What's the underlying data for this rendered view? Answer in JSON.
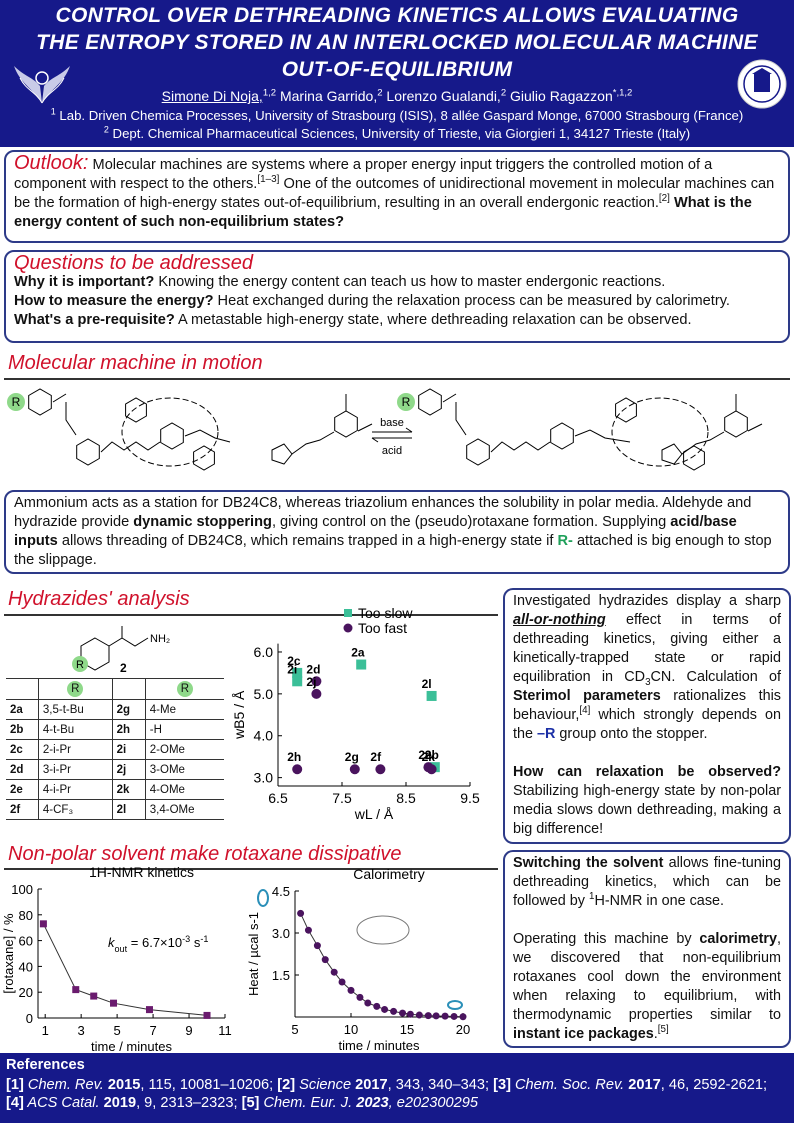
{
  "header": {
    "title": [
      "CONTROL OVER DETHREADING KINETICS ALLOWS EVALUATING",
      "THE ENTROPY STORED IN AN INTERLOCKED MOLECULAR MACHINE",
      "OUT-OF-EQUILIBRIUM"
    ],
    "authors": [
      "Simone Di Noja,",
      "1,2",
      " Marina Garrido,",
      "2",
      " Lorenzo Gualandi,",
      "2",
      " Giulio Ragazzon",
      "*,1,2"
    ],
    "affiliations": [
      [
        "1",
        " Lab. Driven Chemica Processes, University of Strasbourg (ISIS), 8 allée Gaspard Monge, 67000 Strasbourg (France)"
      ],
      [
        "2",
        " Dept. Chemical Pharmaceutical Sciences, University of Trieste, via Giorgieri 1, 34127 Trieste (Italy)"
      ]
    ]
  },
  "outlook": {
    "text": [
      "Outlook:",
      " Molecular machines are systems where a proper energy input triggers the controlled motion of a component with respect to the others.",
      "[1–3]",
      " One of the outcomes of unidirectional movement in molecular machines can be the formation of high-energy states out-of-equilibrium, resulting in an overall endergonic reaction.",
      "[2]",
      " What is the energy content of such non-equilibrium states?"
    ]
  },
  "questions": {
    "title": "Questions to be addressed",
    "lines": [
      [
        "Why it is important?",
        " Knowing the energy content can teach us how to master endergonic reactions."
      ],
      [
        "How to measure the energy?",
        " Heat exchanged during the relaxation process can be measured by calorimetry."
      ],
      [
        "What's a pre-requisite?",
        " A metastable high-energy state, where dethreading relaxation can be observed."
      ]
    ]
  },
  "machine": {
    "title": "Molecular machine in motion",
    "scheme": {
      "r_left": "R",
      "r_right": "R",
      "forward": "base",
      "backward": "acid"
    },
    "description": [
      "Ammonium acts as a station for DB24C8, whereas triazolium enhances the solubility in polar media. Aldehyde and hydrazide provide ",
      "dynamic stoppering",
      ", giving control on the (pseudo)rotaxane formation. Supplying ",
      "acid/base inputs",
      " allows threading of DB24C8, which remains trapped in a high-energy state if ",
      "R-",
      " attached is big enough to stop the slippage."
    ]
  },
  "hydrazides": {
    "title": "Hydrazides' analysis",
    "structure": {
      "r": "R",
      "amine": "NH₂",
      "compound": "2"
    },
    "table": {
      "header": [
        "R",
        "R"
      ],
      "rows": [
        [
          "2a",
          "3,5-t-Bu",
          "2g",
          "4-Me"
        ],
        [
          "2b",
          "4-t-Bu",
          "2h",
          "-H"
        ],
        [
          "2c",
          "2-i-Pr",
          "2i",
          "2-OMe"
        ],
        [
          "2d",
          "3-i-Pr",
          "2j",
          "3-OMe"
        ],
        [
          "2e",
          "4-i-Pr",
          "2k",
          "4-OMe"
        ],
        [
          "2f",
          "4-CF₃",
          "2l",
          "3,4-OMe"
        ]
      ]
    },
    "summary": [
      "Investigated hydrazides display a sharp ",
      "all-or-nothing",
      " effect in terms of dethreading kinetics, giving either a kinetically-trapped state or rapid equilibration in CD",
      "3",
      "CN. Calculation of ",
      "Sterimol parameters",
      " rationalizes this behaviour,",
      "[4]",
      " which strongly depends on the ",
      "–R",
      " group onto the stopper."
    ],
    "question": [
      "How can relaxation be observed?",
      " Stabilizing high-energy state by non-polar media slows down dethreading, making a big difference!"
    ]
  },
  "dissipative": {
    "title": "Non-polar solvent make rotaxane dissipative",
    "text1": [
      "Switching the solvent",
      " allows fine-tuning dethreading kinetics, which can be followed by ",
      "1",
      "H-NMR in one case."
    ],
    "text2": [
      "Operating this machine by ",
      "calorimetry",
      ", we discovered that non-equilibrium rotaxanes cool down the environment when relaxing to equilibrium, with thermodynamic properties similar to ",
      "instant ice packages",
      ".",
      "[5]"
    ]
  },
  "references": {
    "title": "References",
    "text": [
      "[1]",
      " Chem. Rev. ",
      "2015",
      ", 115, 10081–10206; ",
      "[2]",
      " Science ",
      "2017",
      ", 343, 340–343; ",
      "[3]",
      " Chem. Soc. Rev. ",
      "2017",
      ", 46, 2592-2621; ",
      "[4]",
      " ACS Catal. ",
      "2019",
      ", 9, 2313–2323; ",
      "[5]",
      " Chem. Eur. J. ",
      "2023",
      ", e202300295"
    ]
  },
  "chart_data": [
    {
      "type": "scatter",
      "xlabel": "wL / Å",
      "ylabel": "wB5 / Å",
      "xlim": [
        6.5,
        9.5
      ],
      "xticks": [
        6.5,
        7.5,
        8.5,
        9.5
      ],
      "ylim": [
        2.8,
        6.2
      ],
      "yticks": [
        {
          "value": 3,
          "label": "3.0"
        },
        {
          "value": 4,
          "label": "4.0"
        },
        {
          "value": 5,
          "label": "5.0"
        },
        {
          "value": 6,
          "label": "6.0"
        }
      ],
      "legend": "top",
      "series": [
        {
          "name": "Too slow",
          "color": "#3bbf98",
          "marker": "square",
          "x": [
            6.8,
            6.8,
            7.8,
            8.9,
            8.95
          ],
          "values": [
            5.5,
            5.3,
            5.7,
            4.95,
            3.25
          ],
          "labels": [
            "2c",
            "2i",
            "2a",
            "2l",
            "2b"
          ]
        },
        {
          "name": "Too fast",
          "color": "#4a145e",
          "marker": "circle",
          "x": [
            7.1,
            7.1,
            6.8,
            7.7,
            8.1,
            8.85,
            8.9
          ],
          "values": [
            5.3,
            5.0,
            3.2,
            3.2,
            3.2,
            3.25,
            3.2
          ],
          "labels": [
            "2d",
            "2j",
            "2h",
            "2g",
            "2f",
            "2e",
            "2k"
          ]
        }
      ]
    },
    {
      "type": "line",
      "title": [
        "1",
        "H-NMR kinetics"
      ],
      "annotation": [
        "k",
        "out",
        " = 6.7×10",
        "-3",
        " s",
        "-1"
      ],
      "xlabel": "time / minutes",
      "ylabel": "[rotaxane] / %",
      "xlim": [
        0.6,
        11
      ],
      "xticks": [
        1,
        3,
        5,
        7,
        9,
        11
      ],
      "ylim": [
        0,
        100
      ],
      "yticks": [
        0,
        20,
        40,
        60,
        80,
        100
      ],
      "series": [
        {
          "color": "#6a1b6e",
          "marker": "square",
          "x": [
            0.9,
            2.7,
            3.7,
            4.8,
            6.8,
            10
          ],
          "values": [
            73,
            22,
            17,
            11.5,
            6.5,
            2
          ]
        }
      ]
    },
    {
      "type": "line",
      "title": "Calorimetry",
      "xlabel": "time / minutes",
      "ylabel": [
        "Heat / µcal s",
        "-1"
      ],
      "xlim": [
        5,
        20
      ],
      "xticks": [
        5,
        10,
        15,
        20
      ],
      "ylim": [
        0,
        4.5
      ],
      "yticks": [
        1.5,
        {
          "value": 3,
          "label": "3.0"
        },
        4.5
      ],
      "series": [
        {
          "color": "#4a145e",
          "marker": "circle",
          "x": [
            5.5,
            6.2,
            7,
            7.7,
            8.5,
            9.2,
            10,
            10.8,
            11.5,
            12.3,
            13,
            13.8,
            14.6,
            15.3,
            16.1,
            16.9,
            17.6,
            18.4,
            19.2,
            20
          ],
          "values": [
            3.7,
            3.1,
            2.55,
            2.05,
            1.6,
            1.25,
            0.95,
            0.7,
            0.5,
            0.38,
            0.27,
            0.2,
            0.14,
            0.1,
            0.07,
            0.05,
            0.04,
            0.03,
            0.02,
            0.01
          ]
        }
      ]
    }
  ]
}
